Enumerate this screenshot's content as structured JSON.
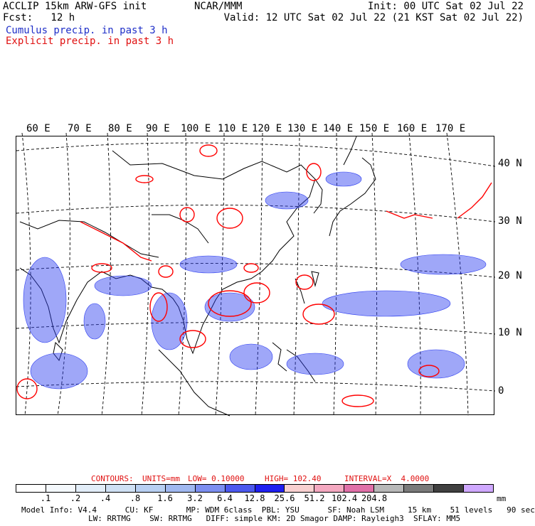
{
  "header": {
    "left_line1": "ACCLIP 15km ARW-GFS init",
    "left_line2": "Fcst:   12 h",
    "center": "NCAR/MMM",
    "right_line1": "Init: 00 UTC Sat 02 Jul 22",
    "right_line2": "Valid: 12 UTC Sat 02 Jul 22 (21 KST Sat 02 Jul 22)",
    "legend_cumulus": "Cumulus precip. in past 3 h",
    "legend_explicit": "Explicit precip. in past 3 h"
  },
  "map": {
    "longitude_labels": [
      "60 E",
      "70 E",
      "80 E",
      "90 E",
      "100 E",
      "110 E",
      "120 E",
      "130 E",
      "140 E",
      "150 E",
      "160 E",
      "170 E"
    ],
    "latitude_labels": [
      "40 N",
      "30 N",
      "20 N",
      "10 N",
      "0"
    ],
    "colors": {
      "cumulus": "#2b3cf0",
      "explicit": "#ff0000",
      "coast": "#000000",
      "grid": "#000000"
    }
  },
  "contours": {
    "label": "CONTOURS:",
    "units": "UNITS=mm",
    "low": "LOW= 0.10000",
    "high": "HIGH= 102.40",
    "interval": "INTERVAL=X  4.0000"
  },
  "colorbar": {
    "colors": [
      "#ffffff",
      "#f4f8fc",
      "#e2edf8",
      "#cfe0f4",
      "#b8cff2",
      "#a0b8f0",
      "#7c8ef0",
      "#4c58ee",
      "#1f1ff0",
      "#f8d0d0",
      "#f4a8c0",
      "#e070a8",
      "#b8b8b8",
      "#7a7a7a",
      "#404040",
      "#cfa8ff"
    ],
    "ticks": [
      ".1",
      ".2",
      ".4",
      ".8",
      "1.6",
      "3.2",
      "6.4",
      "12.8",
      "25.6",
      "51.2",
      "102.4",
      "204.8"
    ],
    "unit": "mm"
  },
  "footer": {
    "line1": "Model Info: V4.4      CU: KF       MP: WDM 6class  PBL: YSU      SF: Noah LSM     15 km    51 levels   90 sec",
    "line2": "LW: RRTMG    SW: RRTMG   DIFF: simple KM: 2D Smagor DAMP: Rayleigh3  SFLAY: MM5"
  }
}
